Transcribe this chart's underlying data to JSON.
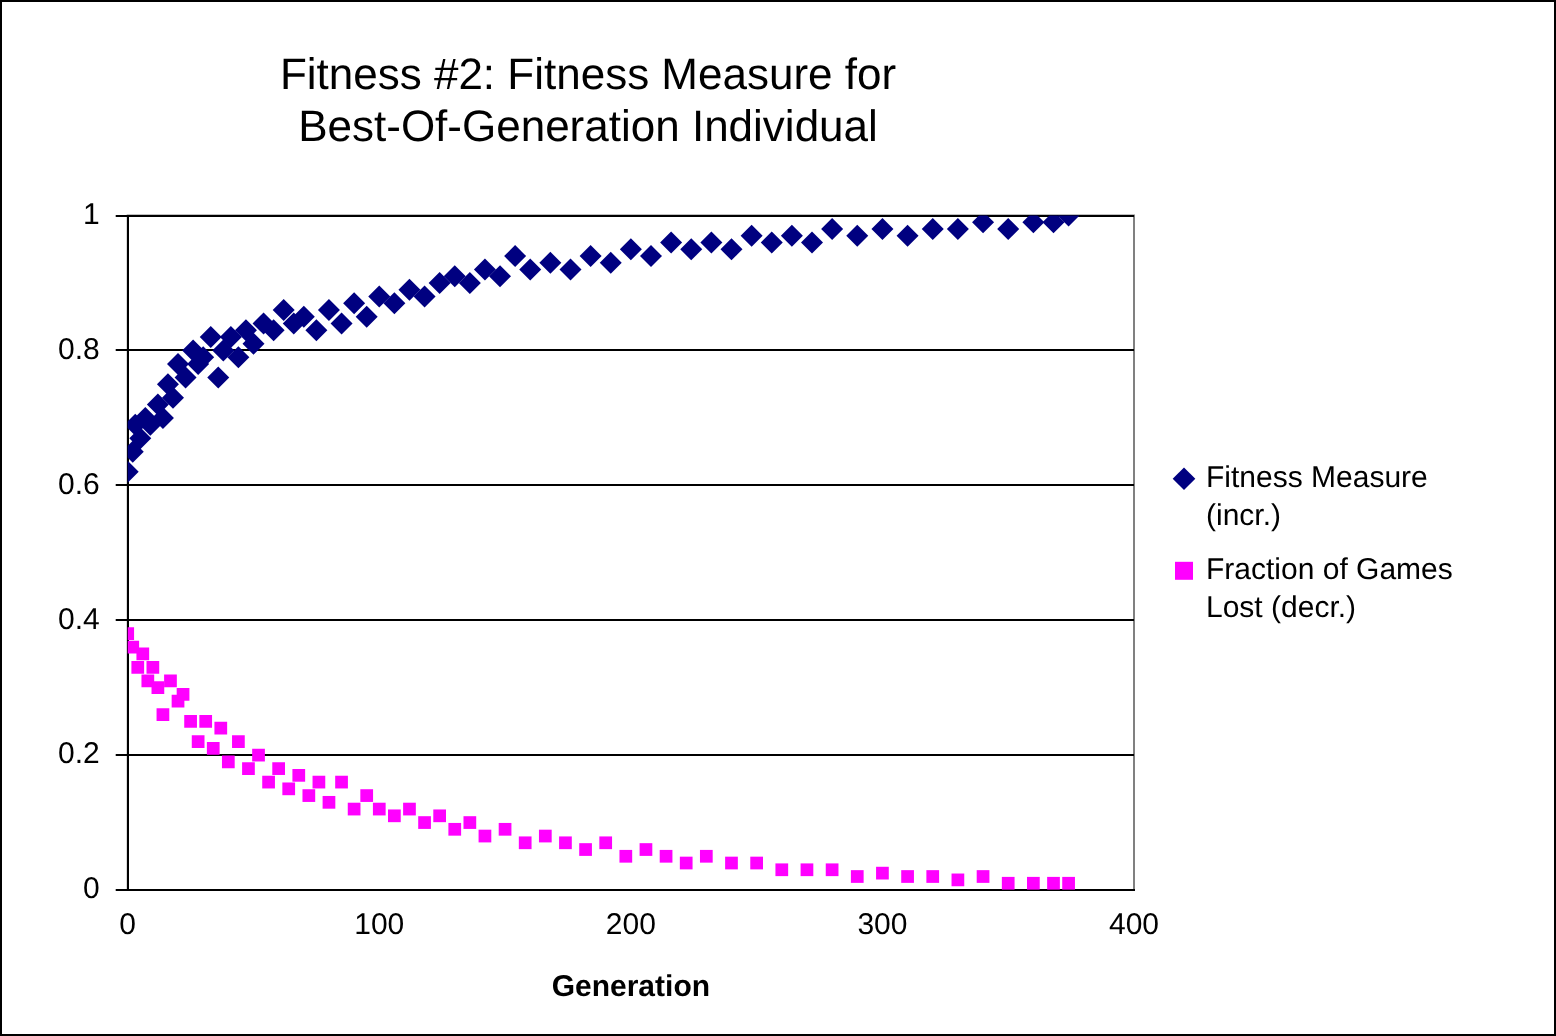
{
  "chart_data": {
    "type": "scatter",
    "title": "Fitness #2: Fitness Measure for Best-Of-Generation Individual",
    "xlabel": "Generation",
    "xlim": [
      0,
      400
    ],
    "xticks": [
      0,
      100,
      200,
      300,
      400
    ],
    "ylim": [
      0,
      1
    ],
    "yticks": [
      0,
      0.2,
      0.4,
      0.6,
      0.8,
      1
    ],
    "grid": "y",
    "legend": "right",
    "series": [
      {
        "name": "Fitness Measure (incr.)",
        "color": "#000080",
        "marker": "diamond",
        "x": [
          0,
          2,
          3,
          5,
          7,
          9,
          12,
          14,
          16,
          18,
          20,
          23,
          26,
          28,
          30,
          33,
          36,
          38,
          41,
          44,
          47,
          50,
          54,
          58,
          62,
          66,
          70,
          75,
          80,
          85,
          90,
          95,
          100,
          106,
          112,
          118,
          124,
          130,
          136,
          142,
          148,
          154,
          160,
          168,
          176,
          184,
          192,
          200,
          208,
          216,
          224,
          232,
          240,
          248,
          256,
          264,
          272,
          280,
          290,
          300,
          310,
          320,
          330,
          340,
          350,
          360,
          368,
          374
        ],
        "values": [
          0.62,
          0.65,
          0.69,
          0.67,
          0.7,
          0.69,
          0.72,
          0.7,
          0.75,
          0.73,
          0.78,
          0.76,
          0.8,
          0.78,
          0.79,
          0.82,
          0.76,
          0.8,
          0.82,
          0.79,
          0.83,
          0.81,
          0.84,
          0.83,
          0.86,
          0.84,
          0.85,
          0.83,
          0.86,
          0.84,
          0.87,
          0.85,
          0.88,
          0.87,
          0.89,
          0.88,
          0.9,
          0.91,
          0.9,
          0.92,
          0.91,
          0.94,
          0.92,
          0.93,
          0.92,
          0.94,
          0.93,
          0.95,
          0.94,
          0.96,
          0.95,
          0.96,
          0.95,
          0.97,
          0.96,
          0.97,
          0.96,
          0.98,
          0.97,
          0.98,
          0.97,
          0.98,
          0.98,
          0.99,
          0.98,
          0.99,
          0.99,
          1.0
        ]
      },
      {
        "name": "Fraction of Games Lost (decr.)",
        "color": "#ff00ff",
        "marker": "square",
        "x": [
          0,
          2,
          4,
          6,
          8,
          10,
          12,
          14,
          17,
          20,
          22,
          25,
          28,
          31,
          34,
          37,
          40,
          44,
          48,
          52,
          56,
          60,
          64,
          68,
          72,
          76,
          80,
          85,
          90,
          95,
          100,
          106,
          112,
          118,
          124,
          130,
          136,
          142,
          150,
          158,
          166,
          174,
          182,
          190,
          198,
          206,
          214,
          222,
          230,
          240,
          250,
          260,
          270,
          280,
          290,
          300,
          310,
          320,
          330,
          340,
          350,
          360,
          368,
          374
        ],
        "values": [
          0.38,
          0.36,
          0.33,
          0.35,
          0.31,
          0.33,
          0.3,
          0.26,
          0.31,
          0.28,
          0.29,
          0.25,
          0.22,
          0.25,
          0.21,
          0.24,
          0.19,
          0.22,
          0.18,
          0.2,
          0.16,
          0.18,
          0.15,
          0.17,
          0.14,
          0.16,
          0.13,
          0.16,
          0.12,
          0.14,
          0.12,
          0.11,
          0.12,
          0.1,
          0.11,
          0.09,
          0.1,
          0.08,
          0.09,
          0.07,
          0.08,
          0.07,
          0.06,
          0.07,
          0.05,
          0.06,
          0.05,
          0.04,
          0.05,
          0.04,
          0.04,
          0.03,
          0.03,
          0.03,
          0.02,
          0.025,
          0.02,
          0.02,
          0.015,
          0.02,
          0.01,
          0.01,
          0.01,
          0.01
        ]
      }
    ]
  }
}
